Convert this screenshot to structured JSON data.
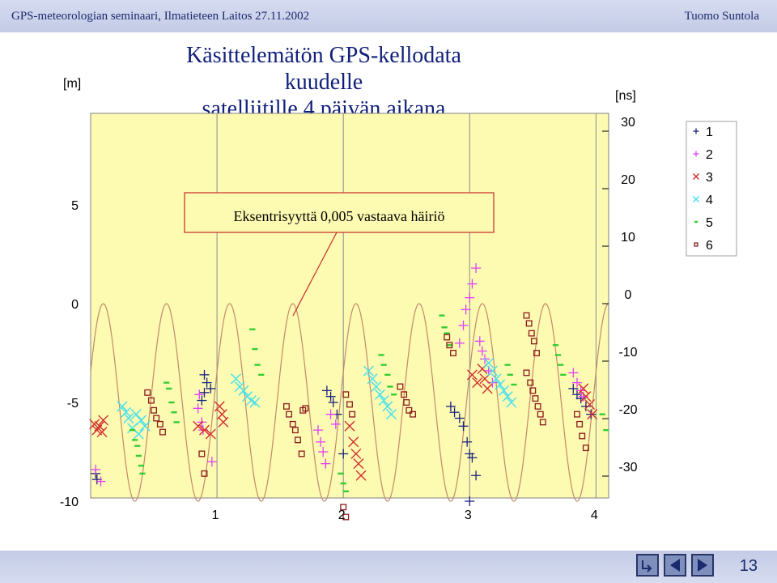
{
  "header": {
    "left": "GPS-meteorologian seminaari, Ilmatieteen Laitos 27.11.2002",
    "right": "Tuomo Suntola"
  },
  "title_lines": [
    "Käsittelemätön GPS-kellodata kuudelle",
    "satelliitille 4 päivän aikana"
  ],
  "left_unit": "[m]",
  "right_unit": "[ns]",
  "annotation": "Eksentrisyyttä 0,005 vastaava häiriö",
  "page_number": "13",
  "chart_data": {
    "type": "scatter",
    "x_range": [
      0,
      4.1
    ],
    "left_axis": {
      "unit": "[m]",
      "ticks": [
        5,
        0,
        -5,
        -10
      ],
      "range": [
        -10,
        10
      ]
    },
    "right_axis": {
      "unit": "[ns]",
      "ticks": [
        30,
        20,
        10,
        0,
        -10,
        -20,
        -30
      ],
      "range": [
        -33.3,
        33.3
      ]
    },
    "x_ticks": [
      1,
      2,
      3,
      4
    ],
    "grid": true,
    "legend_position": "top-right",
    "sine_reference": {
      "amplitude_m": 5,
      "period_days": 0.5,
      "offset_m": -5
    },
    "series": [
      {
        "name": "1",
        "marker": "+",
        "color": "#1a237e",
        "points": [
          [
            0.04,
            -8.6
          ],
          [
            0.05,
            -8.9
          ],
          [
            0.9,
            -3.6
          ],
          [
            0.92,
            -4
          ],
          [
            0.95,
            -4.3
          ],
          [
            0.9,
            -4.5
          ],
          [
            0.88,
            -4.9
          ],
          [
            1.87,
            -4.4
          ],
          [
            1.9,
            -4.7
          ],
          [
            1.92,
            -5
          ],
          [
            1.95,
            -5.6
          ],
          [
            2,
            -7.6
          ],
          [
            2.85,
            -5.2
          ],
          [
            2.88,
            -5.5
          ],
          [
            2.92,
            -5.8
          ],
          [
            2.95,
            -6.2
          ],
          [
            2.98,
            -7
          ],
          [
            3.0,
            -7.6
          ],
          [
            3.02,
            -7.8
          ],
          [
            3.05,
            -8.7
          ],
          [
            3.0,
            -10
          ],
          [
            3.82,
            -4.3
          ],
          [
            3.85,
            -4.6
          ],
          [
            3.88,
            -4.8
          ],
          [
            3.92,
            -5.2
          ],
          [
            3.96,
            -5.6
          ]
        ]
      },
      {
        "name": "2",
        "marker": "+",
        "color": "#e040fb",
        "points": [
          [
            0.04,
            -8.4
          ],
          [
            0.08,
            -9
          ],
          [
            0.86,
            -4.6
          ],
          [
            0.85,
            -5.3
          ],
          [
            0.88,
            -6
          ],
          [
            0.89,
            -6.4
          ],
          [
            0.96,
            -8
          ],
          [
            1.8,
            -6.4
          ],
          [
            1.82,
            -7
          ],
          [
            1.84,
            -7.5
          ],
          [
            1.86,
            -8.1
          ],
          [
            1.9,
            -5.6
          ],
          [
            1.94,
            -6.1
          ],
          [
            2.92,
            -2
          ],
          [
            2.95,
            -1.1
          ],
          [
            2.97,
            -0.3
          ],
          [
            3.0,
            0.3
          ],
          [
            3.02,
            1
          ],
          [
            3.05,
            1.8
          ],
          [
            3.08,
            -1.9
          ],
          [
            3.1,
            -2.4
          ],
          [
            3.12,
            -2.8
          ],
          [
            3.15,
            -3.4
          ],
          [
            3.18,
            -4
          ],
          [
            3.82,
            -3.5
          ],
          [
            3.85,
            -4
          ],
          [
            3.88,
            -4.4
          ],
          [
            3.9,
            -4.7
          ]
        ]
      },
      {
        "name": "3",
        "marker": "x",
        "color": "#d32f2f",
        "points": [
          [
            0.03,
            -6.1
          ],
          [
            0.05,
            -6.4
          ],
          [
            0.07,
            -6.2
          ],
          [
            0.09,
            -6.5
          ],
          [
            0.1,
            -5.9
          ],
          [
            0.85,
            -6.2
          ],
          [
            0.9,
            -6.4
          ],
          [
            0.95,
            -6.6
          ],
          [
            1.02,
            -5.2
          ],
          [
            1.04,
            -5.6
          ],
          [
            1.05,
            -6
          ],
          [
            2.05,
            -6.2
          ],
          [
            2.08,
            -7
          ],
          [
            2.1,
            -7.6
          ],
          [
            2.12,
            -8.1
          ],
          [
            2.14,
            -8.7
          ],
          [
            3.02,
            -3.6
          ],
          [
            3.06,
            -4
          ],
          [
            3.1,
            -3.3
          ],
          [
            3.12,
            -3.8
          ],
          [
            3.14,
            -4.3
          ],
          [
            3.9,
            -4.3
          ],
          [
            3.92,
            -4.7
          ],
          [
            3.95,
            -5.1
          ],
          [
            3.97,
            -5.6
          ]
        ]
      },
      {
        "name": "4",
        "marker": "x",
        "color": "#40e0f0",
        "points": [
          [
            0.25,
            -5.2
          ],
          [
            0.28,
            -5.5
          ],
          [
            0.3,
            -5.8
          ],
          [
            0.33,
            -6.3
          ],
          [
            0.36,
            -5.6
          ],
          [
            0.38,
            -6.6
          ],
          [
            0.4,
            -5.9
          ],
          [
            0.43,
            -6.2
          ],
          [
            1.15,
            -3.8
          ],
          [
            1.18,
            -4.2
          ],
          [
            1.21,
            -4.4
          ],
          [
            1.24,
            -4.7
          ],
          [
            1.27,
            -4.9
          ],
          [
            1.3,
            -5
          ],
          [
            2.2,
            -3.4
          ],
          [
            2.23,
            -3.8
          ],
          [
            2.26,
            -4.2
          ],
          [
            2.29,
            -4.6
          ],
          [
            2.32,
            -4.9
          ],
          [
            2.35,
            -5.2
          ],
          [
            2.38,
            -5.6
          ],
          [
            3.15,
            -3
          ],
          [
            3.18,
            -3.4
          ],
          [
            3.21,
            -3.8
          ],
          [
            3.24,
            -4.1
          ],
          [
            3.27,
            -4.4
          ],
          [
            3.3,
            -4.7
          ],
          [
            3.33,
            -5
          ]
        ]
      },
      {
        "name": "5",
        "marker": "-",
        "color": "#32cd32",
        "points": [
          [
            0.33,
            -6.4
          ],
          [
            0.35,
            -6.9
          ],
          [
            0.37,
            -7.2
          ],
          [
            0.38,
            -7.7
          ],
          [
            0.4,
            -8.2
          ],
          [
            0.41,
            -8.6
          ],
          [
            0.6,
            -4
          ],
          [
            0.62,
            -4.3
          ],
          [
            0.64,
            -5
          ],
          [
            0.66,
            -5.5
          ],
          [
            0.68,
            -6
          ],
          [
            1.28,
            -1.3
          ],
          [
            1.3,
            -2.3
          ],
          [
            1.32,
            -3.1
          ],
          [
            1.35,
            -3.6
          ],
          [
            1.98,
            -8.6
          ],
          [
            2.0,
            -9.1
          ],
          [
            2.02,
            -9.5
          ],
          [
            2.3,
            -2.6
          ],
          [
            2.32,
            -3.1
          ],
          [
            2.35,
            -3.6
          ],
          [
            2.37,
            -4.2
          ],
          [
            2.4,
            -4.6
          ],
          [
            2.78,
            -0.6
          ],
          [
            2.8,
            -1.2
          ],
          [
            2.82,
            -1.5
          ],
          [
            2.84,
            -2.1
          ],
          [
            3.3,
            -3.1
          ],
          [
            3.32,
            -3.6
          ],
          [
            3.35,
            -4.1
          ],
          [
            3.68,
            -2.1
          ],
          [
            3.7,
            -2.6
          ],
          [
            3.72,
            -3.1
          ],
          [
            3.74,
            -3.6
          ],
          [
            4.05,
            -5.6
          ],
          [
            4.08,
            -6.4
          ]
        ]
      },
      {
        "name": "6",
        "marker": "square",
        "color": "#8b1a1a",
        "points": [
          [
            0.45,
            -4.5
          ],
          [
            0.48,
            -4.9
          ],
          [
            0.5,
            -5.4
          ],
          [
            0.52,
            -5.8
          ],
          [
            0.55,
            -6.1
          ],
          [
            0.57,
            -6.5
          ],
          [
            0.88,
            -7.6
          ],
          [
            0.9,
            -8.6
          ],
          [
            1.55,
            -5.2
          ],
          [
            1.57,
            -5.6
          ],
          [
            1.6,
            -6.1
          ],
          [
            1.62,
            -6.4
          ],
          [
            1.64,
            -6.9
          ],
          [
            1.67,
            -7.6
          ],
          [
            1.68,
            -5.4
          ],
          [
            1.7,
            -5.3
          ],
          [
            2.02,
            -4.6
          ],
          [
            2.05,
            -5.1
          ],
          [
            2.07,
            -5.6
          ],
          [
            2.0,
            -10.3
          ],
          [
            2.02,
            -10.8
          ],
          [
            2.45,
            -4.2
          ],
          [
            2.48,
            -4.6
          ],
          [
            2.5,
            -5
          ],
          [
            2.52,
            -5.4
          ],
          [
            2.55,
            -5.6
          ],
          [
            2.82,
            -1.7
          ],
          [
            2.84,
            -2.1
          ],
          [
            2.87,
            -2.5
          ],
          [
            3.45,
            -3.5
          ],
          [
            3.48,
            -4
          ],
          [
            3.5,
            -4.4
          ],
          [
            3.52,
            -4.8
          ],
          [
            3.54,
            -5.2
          ],
          [
            3.56,
            -5.6
          ],
          [
            3.58,
            -6
          ],
          [
            3.45,
            -0.6
          ],
          [
            3.47,
            -1
          ],
          [
            3.49,
            -1.5
          ],
          [
            3.51,
            -1.9
          ],
          [
            3.53,
            -2.5
          ],
          [
            3.85,
            -5.6
          ],
          [
            3.87,
            -6.1
          ],
          [
            3.89,
            -6.7
          ],
          [
            3.92,
            -7.3
          ]
        ]
      }
    ]
  }
}
